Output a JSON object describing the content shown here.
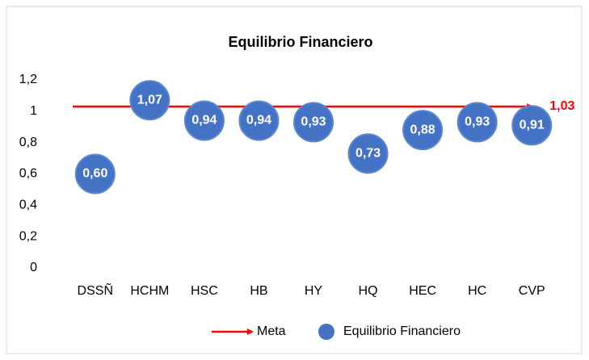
{
  "chart_data": {
    "type": "scatter",
    "title": "Equilibrio Financiero",
    "categories": [
      "DSSÑ",
      "HCHM",
      "HSC",
      "HB",
      "HY",
      "HQ",
      "HEC",
      "HC",
      "CVP"
    ],
    "series": [
      {
        "name": "Meta",
        "color": "#ff0000",
        "kind": "line",
        "values": [
          1.03,
          1.03,
          1.03,
          1.03,
          1.03,
          1.03,
          1.03,
          1.03,
          1.03
        ],
        "value_labels": [
          null,
          null,
          null,
          null,
          null,
          null,
          null,
          null,
          "1,03"
        ]
      },
      {
        "name": "Equilibrio Financiero",
        "color": "#4472c4",
        "kind": "marker",
        "values": [
          0.6,
          1.07,
          0.94,
          0.94,
          0.93,
          0.73,
          0.88,
          0.93,
          0.91
        ],
        "value_labels": [
          "0,60",
          "1,07",
          "0,94",
          "0,94",
          "0,93",
          "0,73",
          "0,88",
          "0,93",
          "0,91"
        ]
      }
    ],
    "ylim": [
      0,
      1.2
    ],
    "yticks": [
      0,
      {
        "value": 0.2,
        "label": "0,2"
      },
      {
        "value": 0.4,
        "label": "0,4"
      },
      {
        "value": 0.6,
        "label": "0,6"
      },
      {
        "value": 0.8,
        "label": "0,8"
      },
      1,
      {
        "value": 1.2,
        "label": "1,2"
      }
    ],
    "grid": false,
    "legend": "bottom"
  }
}
